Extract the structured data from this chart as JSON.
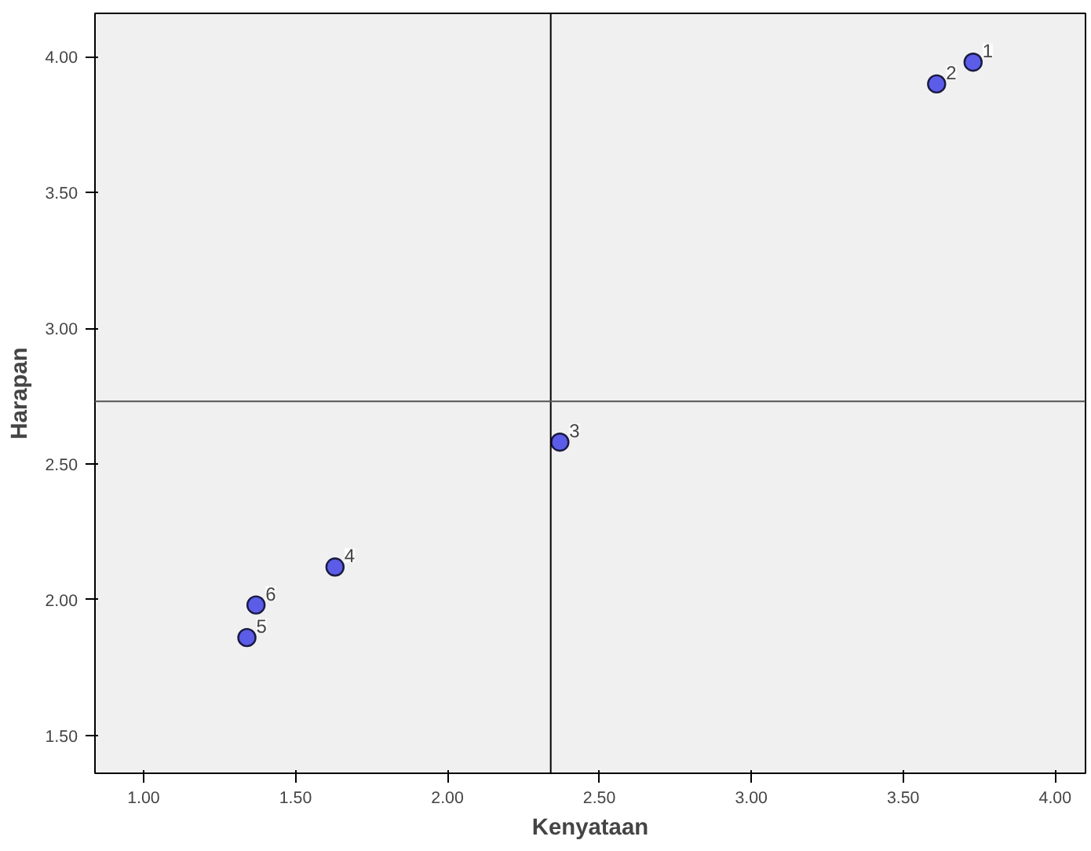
{
  "chart_data": {
    "type": "scatter",
    "xlabel": "Kenyataan",
    "ylabel": "Harapan",
    "x": [
      3.73,
      3.61,
      2.37,
      1.63,
      1.34,
      1.37
    ],
    "series": [
      {
        "color": "#5b5ce8",
        "values": [
          3.98,
          3.9,
          2.58,
          2.12,
          1.86,
          1.98
        ]
      }
    ],
    "annotations": [
      {
        "text": "1",
        "x": 3.73,
        "y": 3.98
      },
      {
        "text": "2",
        "x": 3.61,
        "y": 3.9
      },
      {
        "text": "3",
        "x": 2.37,
        "y": 2.58
      },
      {
        "text": "4",
        "x": 1.63,
        "y": 2.12
      },
      {
        "text": "5",
        "x": 1.34,
        "y": 1.86
      },
      {
        "text": "6",
        "x": 1.37,
        "y": 1.98
      }
    ],
    "xlim": [
      0.84,
      4.1
    ],
    "ylim": [
      1.36,
      4.16
    ],
    "xticks": [
      {
        "value": 1,
        "label": "1.00"
      },
      {
        "value": 1.5,
        "label": "1.50"
      },
      {
        "value": 2,
        "label": "2.00"
      },
      {
        "value": 2.5,
        "label": "2.50"
      },
      {
        "value": 3,
        "label": "3.00"
      },
      {
        "value": 3.5,
        "label": "3.50"
      },
      {
        "value": 4,
        "label": "4.00"
      }
    ],
    "yticks": [
      {
        "value": 1.5,
        "label": "1.50"
      },
      {
        "value": 2,
        "label": "2.00"
      },
      {
        "value": 2.5,
        "label": "2.50"
      },
      {
        "value": 3,
        "label": "3.00"
      },
      {
        "value": 3.5,
        "label": "3.50"
      },
      {
        "value": 4,
        "label": "4.00"
      }
    ],
    "ref_lines": [
      {
        "axis": "x",
        "value": 2.34,
        "color": "#000000"
      },
      {
        "axis": "y",
        "value": 2.73,
        "color": "#555555"
      }
    ],
    "marker": "circle",
    "grid": false
  }
}
